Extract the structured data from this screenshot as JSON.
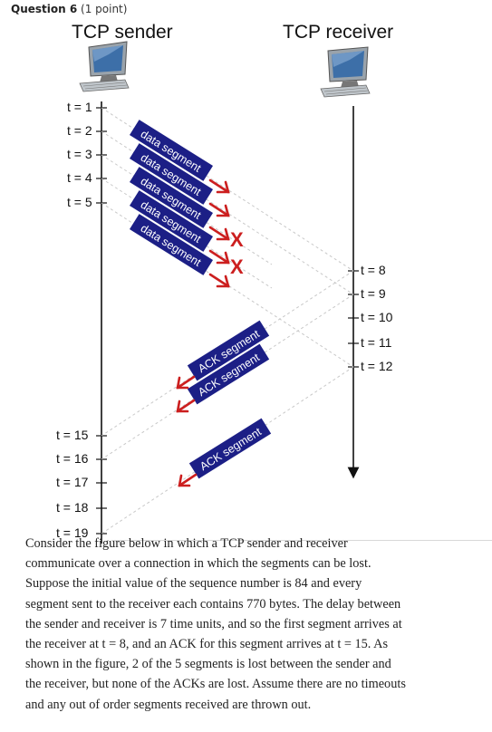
{
  "question": {
    "label": "Question 6",
    "points": "(1 point)"
  },
  "sender": {
    "title": "TCP sender"
  },
  "receiver": {
    "title": "TCP receiver"
  },
  "sender_ticks": [
    "t = 1",
    "t = 2",
    "t = 3",
    "t = 4",
    "t = 5"
  ],
  "sender_ticks_late": [
    "t = 15",
    "t = 16",
    "t = 17",
    "t = 18",
    "t = 19"
  ],
  "receiver_ticks": [
    "t = 8",
    "t = 9",
    "t = 10",
    "t = 11",
    "t = 12"
  ],
  "data_segments": [
    "data segment",
    "data segment",
    "data segment",
    "data segment",
    "data segment"
  ],
  "lost_marks": [
    "X",
    "X"
  ],
  "ack_segments": [
    "ACK segment",
    "ACK segment",
    "ACK segment"
  ],
  "paragraph_lines": [
    "Consider the figure below in which a TCP sender and receiver",
    "communicate over a connection in which the segments can be lost.",
    "Suppose the initial value of the sequence number is 84 and every",
    "segment sent to the receiver each contains 770 bytes. The delay between",
    "the sender and receiver is 7 time units, and so the first segment arrives at",
    "the receiver at t = 8, and an ACK for this segment arrives at t = 15. As",
    "shown in the figure, 2 of the 5 segments is lost between the sender and",
    "the receiver, but none of the ACKs are lost. Assume there are no timeouts",
    "and any out of order segments received are thrown out."
  ],
  "colors": {
    "segment_fill": "#1c1f86",
    "arrow": "#cc1f1f",
    "lost": "#cc1f1f",
    "dash": "#c8c8c8"
  }
}
